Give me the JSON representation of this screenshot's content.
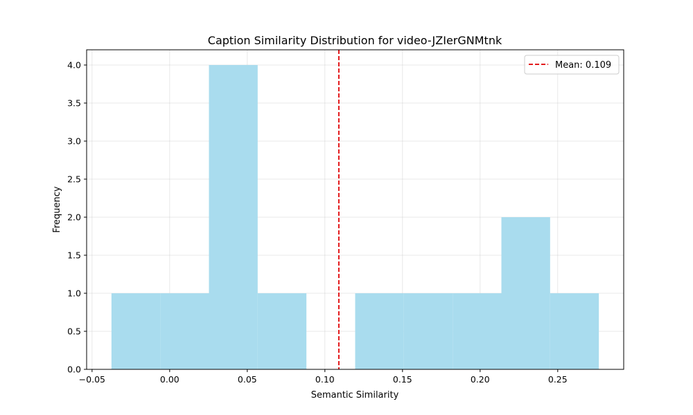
{
  "chart_data": {
    "type": "bar",
    "title": "Caption Similarity Distribution for video-JZIerGNMtnk",
    "xlabel": "Semantic Similarity",
    "ylabel": "Frequency",
    "xlim": [
      -0.0535,
      0.2925
    ],
    "ylim": [
      0,
      4.2
    ],
    "xticks": [
      -0.05,
      0.0,
      0.05,
      0.1,
      0.15,
      0.2,
      0.25
    ],
    "xtick_labels": [
      "−0.05",
      "0.00",
      "0.05",
      "0.10",
      "0.15",
      "0.20",
      "0.25"
    ],
    "yticks": [
      0,
      0.5,
      1,
      1.5,
      2,
      2.5,
      3,
      3.5,
      4
    ],
    "ytick_labels": [
      "0.0",
      "0.5",
      "1.0",
      "1.5",
      "2.0",
      "2.5",
      "3.0",
      "3.5",
      "4.0"
    ],
    "grid": true,
    "bar_color": "#a9dcee",
    "bins": [
      {
        "x0": -0.0375,
        "x1": -0.0061,
        "value": 1
      },
      {
        "x0": -0.0061,
        "x1": 0.0253,
        "value": 1
      },
      {
        "x0": 0.0253,
        "x1": 0.0567,
        "value": 4
      },
      {
        "x0": 0.0567,
        "x1": 0.0881,
        "value": 1
      },
      {
        "x0": 0.0881,
        "x1": 0.1195,
        "value": 0
      },
      {
        "x0": 0.1195,
        "x1": 0.1509,
        "value": 1
      },
      {
        "x0": 0.1509,
        "x1": 0.1823,
        "value": 1
      },
      {
        "x0": 0.1823,
        "x1": 0.2137,
        "value": 1
      },
      {
        "x0": 0.2137,
        "x1": 0.2451,
        "value": 2
      },
      {
        "x0": 0.2451,
        "x1": 0.2765,
        "value": 1
      }
    ],
    "mean_line": {
      "value": 0.109,
      "label": "Mean: 0.109",
      "color": "#e31a1c",
      "style": "dashed"
    },
    "legend_position": "top-right"
  }
}
